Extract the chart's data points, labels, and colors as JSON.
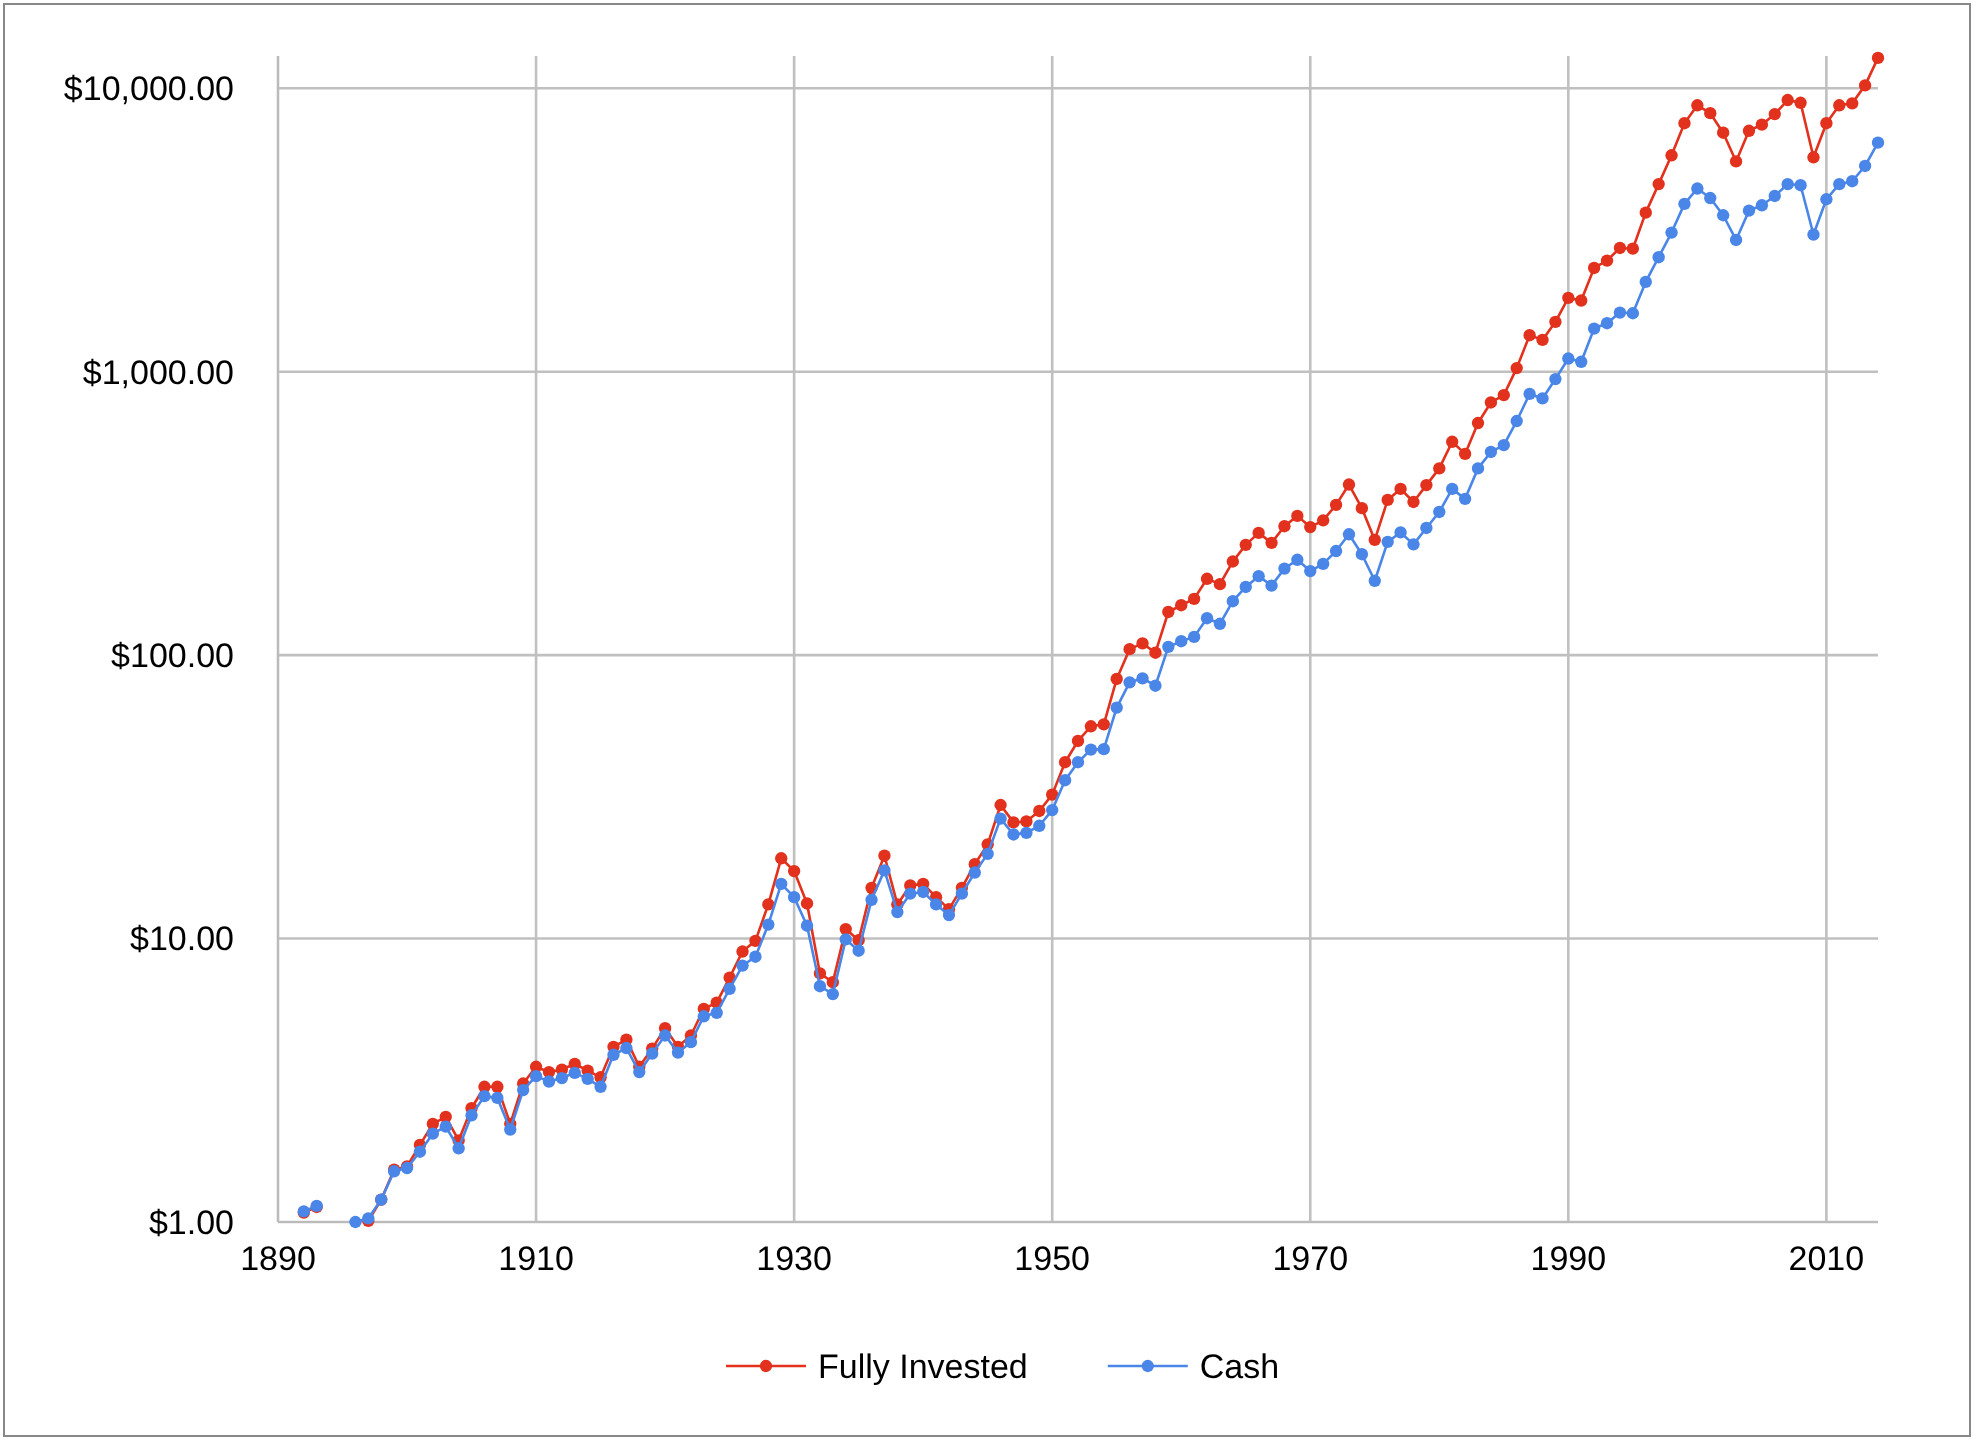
{
  "chart_data": {
    "type": "line",
    "x": [
      1892,
      1893,
      1894,
      1895,
      1896,
      1897,
      1898,
      1899,
      1900,
      1901,
      1902,
      1903,
      1904,
      1905,
      1906,
      1907,
      1908,
      1909,
      1910,
      1911,
      1912,
      1913,
      1914,
      1915,
      1916,
      1917,
      1918,
      1919,
      1920,
      1921,
      1922,
      1923,
      1924,
      1925,
      1926,
      1927,
      1928,
      1929,
      1930,
      1931,
      1932,
      1933,
      1934,
      1935,
      1936,
      1937,
      1938,
      1939,
      1940,
      1941,
      1942,
      1943,
      1944,
      1945,
      1946,
      1947,
      1948,
      1949,
      1950,
      1951,
      1952,
      1953,
      1954,
      1955,
      1956,
      1957,
      1958,
      1959,
      1960,
      1961,
      1962,
      1963,
      1964,
      1965,
      1966,
      1967,
      1968,
      1969,
      1970,
      1971,
      1972,
      1973,
      1974,
      1975,
      1976,
      1977,
      1978,
      1979,
      1980,
      1981,
      1982,
      1983,
      1984,
      1985,
      1986,
      1987,
      1988,
      1989,
      1990,
      1991,
      1992,
      1993,
      1994,
      1995,
      1996,
      1997,
      1998,
      1999,
      2000,
      2001,
      2002,
      2003,
      2004,
      2005,
      2006,
      2007,
      2008,
      2009,
      2010,
      2011,
      2012,
      2013,
      2014
    ],
    "series": [
      {
        "name": "Fully Invested",
        "color": "#e2311d",
        "values": [
          1.08,
          1.13,
          null,
          null,
          null,
          1.01,
          1.2,
          1.53,
          1.57,
          1.87,
          2.22,
          2.35,
          1.94,
          2.52,
          3.0,
          3.0,
          2.22,
          3.08,
          3.53,
          3.38,
          3.45,
          3.61,
          3.42,
          3.24,
          4.15,
          4.4,
          3.53,
          4.09,
          4.83,
          4.15,
          4.55,
          5.65,
          5.94,
          7.28,
          9.0,
          9.82,
          13.2,
          19.2,
          17.3,
          13.3,
          7.53,
          7.02,
          10.8,
          9.87,
          15.1,
          19.6,
          13.2,
          15.4,
          15.6,
          14.0,
          12.7,
          15.1,
          18.3,
          21.5,
          29.6,
          25.7,
          25.9,
          28.2,
          32.2,
          41.9,
          49.8,
          56.1,
          57.0,
          82.4,
          105,
          110,
          102,
          142,
          150,
          158,
          186,
          178,
          214,
          245,
          270,
          249,
          285,
          310,
          283,
          299,
          339,
          400,
          330,
          255,
          353,
          386,
          347,
          398,
          456,
          566,
          513,
          659,
          779,
          827,
          1030,
          1345,
          1295,
          1500,
          1822,
          1783,
          2323,
          2467,
          2733,
          2717,
          3641,
          4592,
          5803,
          7530,
          8710,
          8170,
          6970,
          5520,
          7080,
          7440,
          8110,
          9090,
          8890,
          5710,
          7530,
          8710,
          8850,
          10240,
          12800
        ]
      },
      {
        "name": "Cash",
        "color": "#4a86e8",
        "values": [
          1.09,
          1.14,
          null,
          null,
          1.0,
          1.03,
          1.2,
          1.51,
          1.55,
          1.77,
          2.05,
          2.17,
          1.82,
          2.38,
          2.78,
          2.74,
          2.12,
          2.92,
          3.27,
          3.13,
          3.22,
          3.36,
          3.2,
          3.0,
          3.89,
          4.11,
          3.38,
          3.93,
          4.55,
          3.96,
          4.31,
          5.32,
          5.47,
          6.65,
          8.03,
          8.63,
          11.2,
          15.6,
          14.0,
          11.1,
          6.79,
          6.37,
          9.93,
          9.06,
          13.7,
          17.4,
          12.4,
          14.4,
          14.6,
          13.2,
          12.1,
          14.4,
          17.1,
          19.9,
          26.5,
          23.3,
          23.6,
          25.0,
          28.4,
          36.2,
          41.9,
          46.4,
          46.6,
          65.3,
          80.2,
          82.8,
          78.0,
          107,
          112,
          116,
          135,
          129,
          155,
          174,
          190,
          176,
          202,
          217,
          198,
          210,
          233,
          267,
          227,
          183,
          251,
          271,
          246,
          281,
          320,
          386,
          356,
          456,
          521,
          551,
          670,
          835,
          805,
          942,
          1113,
          1084,
          1420,
          1483,
          1617,
          1608,
          2074,
          2535,
          3097,
          3910,
          4430,
          4100,
          3565,
          2917,
          3700,
          3866,
          4170,
          4590,
          4550,
          3048,
          4060,
          4590,
          4700,
          5320,
          6430
        ]
      }
    ],
    "log": true,
    "xlim": [
      1890,
      2014
    ],
    "xticks": [
      1890,
      1910,
      1930,
      1950,
      1970,
      1990,
      2010
    ],
    "ylim": [
      1,
      13000
    ],
    "yticks": [
      {
        "value": 1,
        "label": "$1.00"
      },
      {
        "value": 10,
        "label": "$10.00"
      },
      {
        "value": 100,
        "label": "$100.00"
      },
      {
        "value": 1000,
        "label": "$1,000.00"
      },
      {
        "value": 10000,
        "label": "$10,000.00"
      }
    ],
    "grid": true,
    "legend": "bottom",
    "marker": "circle",
    "line_style": "solid"
  }
}
